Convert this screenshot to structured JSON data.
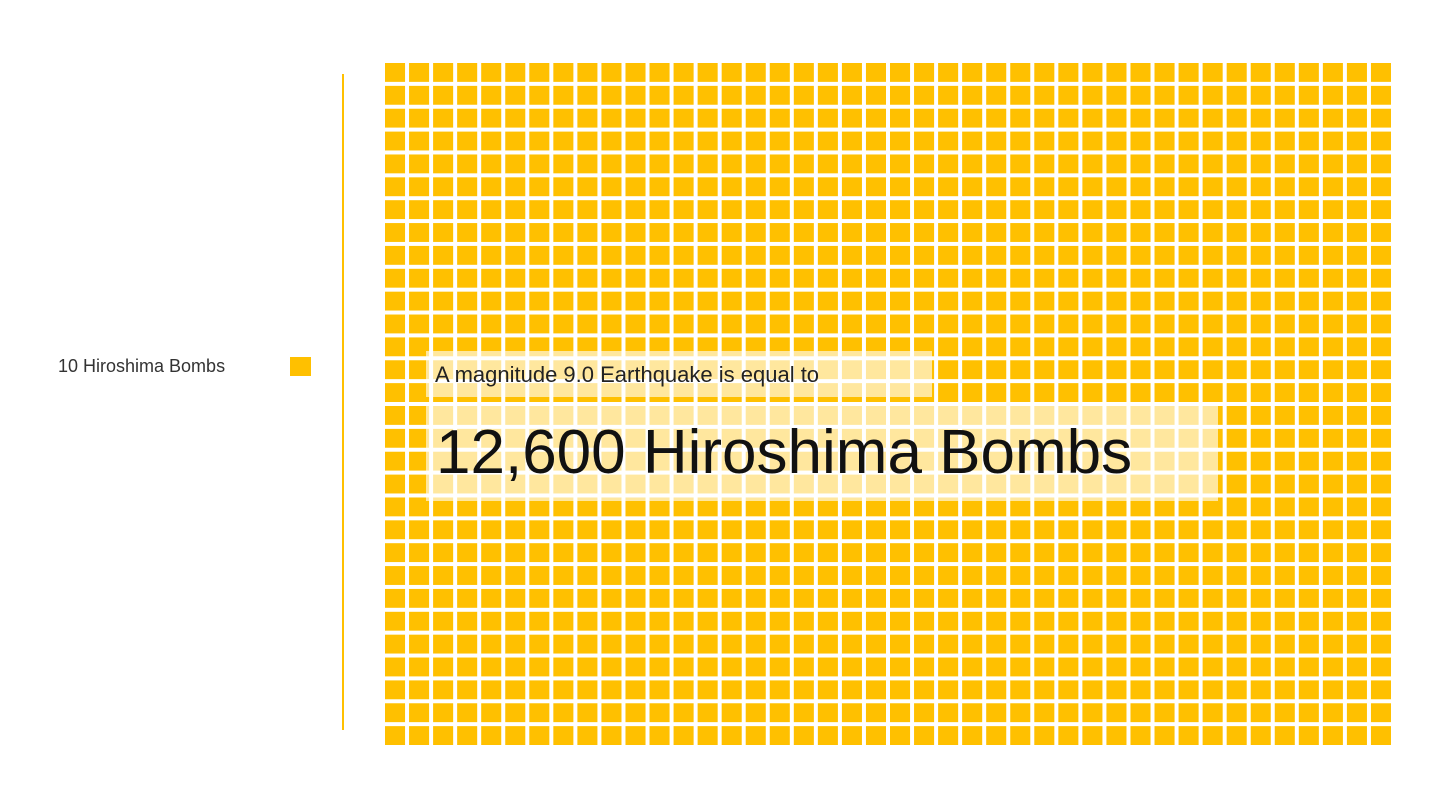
{
  "colors": {
    "accent": "#FFC000",
    "background": "#FFFFFF"
  },
  "legend": {
    "label": "10 Hiroshima Bombs",
    "swatch_icon": "square-icon"
  },
  "caption": {
    "small": "A magnitude 9.0 Earthquake is equal to",
    "large": "12,600 Hiroshima Bombs"
  },
  "chart_data": {
    "type": "waffle",
    "unit_value": 10,
    "unit_label": "10 Hiroshima Bombs",
    "total": 12600,
    "units": 1260,
    "rows": 30,
    "columns": 42,
    "title": "",
    "annotation": "A magnitude 9.0 Earthquake is equal to 12,600 Hiroshima Bombs"
  }
}
